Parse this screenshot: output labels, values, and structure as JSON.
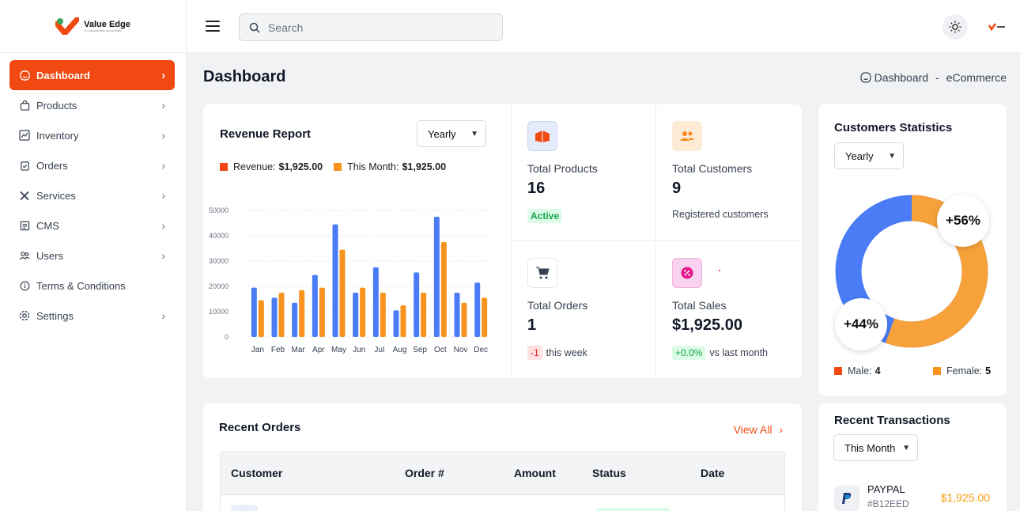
{
  "brand": {
    "name": "Value Edge",
    "tagline": "IT & MARKETING SOLUTIONS"
  },
  "sidebar": {
    "items": [
      {
        "label": "Dashboard",
        "icon": "dashboard-icon",
        "active": true,
        "has_chevron": true
      },
      {
        "label": "Products",
        "icon": "bag-icon",
        "has_chevron": true
      },
      {
        "label": "Inventory",
        "icon": "inventory-icon",
        "has_chevron": true
      },
      {
        "label": "Orders",
        "icon": "clipboard-icon",
        "has_chevron": true
      },
      {
        "label": "Services",
        "icon": "tools-icon",
        "has_chevron": true
      },
      {
        "label": "CMS",
        "icon": "cms-icon",
        "has_chevron": true
      },
      {
        "label": "Users",
        "icon": "users-icon",
        "has_chevron": true
      },
      {
        "label": "Terms & Conditions",
        "icon": "info-icon",
        "has_chevron": false
      },
      {
        "label": "Settings",
        "icon": "gear-icon",
        "has_chevron": true
      }
    ]
  },
  "topbar": {
    "search_placeholder": "Search"
  },
  "page": {
    "title": "Dashboard",
    "breadcrumb": "Dashboard",
    "breadcrumb_sep": "-",
    "breadcrumb_current": "eCommerce"
  },
  "revenue": {
    "title": "Revenue Report",
    "period": "Yearly",
    "legend_revenue_label": "Revenue:",
    "legend_revenue_value": "$1,925.00",
    "legend_month_label": "This Month:",
    "legend_month_value": "$1,925.00"
  },
  "chart_data": {
    "type": "bar",
    "categories": [
      "Jan",
      "Feb",
      "Mar",
      "Apr",
      "May",
      "Jun",
      "Jul",
      "Aug",
      "Sep",
      "Oct",
      "Nov",
      "Dec"
    ],
    "series": [
      {
        "name": "Revenue",
        "color": "#4a7cf6",
        "values": [
          19500,
          15500,
          13500,
          24500,
          44500,
          17500,
          27500,
          10500,
          25500,
          47500,
          17500,
          21500
        ]
      },
      {
        "name": "This Month",
        "color": "#f7931e",
        "values": [
          14500,
          17500,
          18500,
          19500,
          34500,
          19500,
          17500,
          12500,
          17500,
          37500,
          13500,
          15500
        ]
      }
    ],
    "y_ticks": [
      "50000",
      "40000",
      "30000",
      "20000",
      "10000",
      "0"
    ],
    "ylim": [
      0,
      50000
    ],
    "grid": true
  },
  "stats": {
    "products": {
      "label": "Total Products",
      "value": "16",
      "badge": "Active"
    },
    "customers": {
      "label": "Total Customers",
      "value": "9",
      "sub": "Registered customers"
    },
    "orders": {
      "label": "Total Orders",
      "value": "1",
      "badge": "-1",
      "sub": "this week"
    },
    "sales": {
      "label": "Total Sales",
      "value": "$1,925.00",
      "badge": "+0.0%",
      "sub": "vs last month"
    }
  },
  "customers_stats": {
    "title": "Customers Statistics",
    "period": "Yearly",
    "female_pct": "+56%",
    "male_pct": "+44%",
    "male_label": "Male:",
    "male_count": "4",
    "female_label": "Female:",
    "female_count": "5",
    "colors": {
      "male": "#4a7cf6",
      "female": "#f7a13a",
      "male_legend": "#f04a12",
      "female_legend": "#f7931e"
    }
  },
  "recent_orders": {
    "title": "Recent Orders",
    "view_all": "View All",
    "columns": [
      "Customer",
      "Order #",
      "Amount",
      "Status",
      "Date"
    ]
  },
  "transactions": {
    "title": "Recent Transactions",
    "period": "This Month",
    "items": [
      {
        "name": "PAYPAL",
        "ref": "#B12EED",
        "amount": "$1,925.00"
      }
    ]
  },
  "accent": "#f04a12"
}
